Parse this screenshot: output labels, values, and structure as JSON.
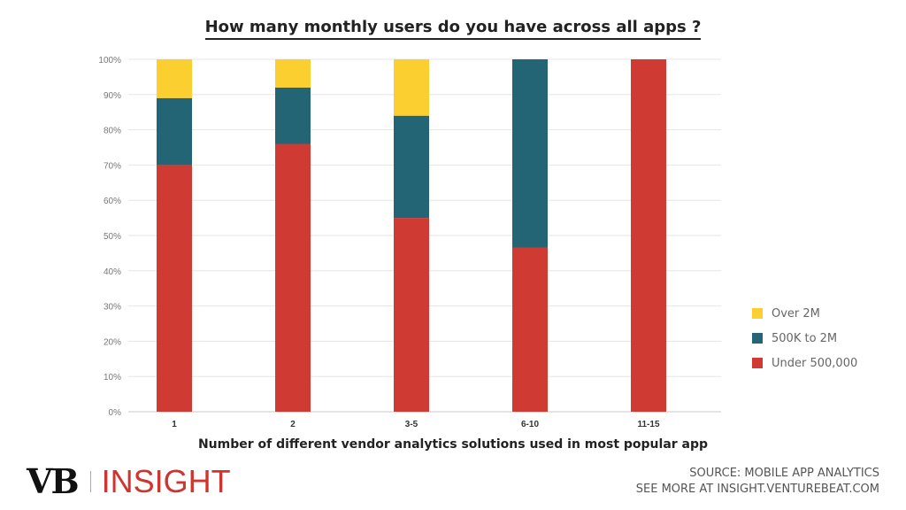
{
  "chart_data": {
    "type": "bar",
    "stacked": true,
    "title": "How many monthly users do you have across all apps ?",
    "xlabel": "Number of different vendor analytics solutions used in most popular app",
    "ylabel": "",
    "categories": [
      "1",
      "2",
      "3-5",
      "6-10",
      "11-15"
    ],
    "ylim": [
      0,
      100
    ],
    "yticks": [
      "0%",
      "10%",
      "20%",
      "30%",
      "40%",
      "50%",
      "60%",
      "70%",
      "80%",
      "90%",
      "100%"
    ],
    "series": [
      {
        "name": "Under 500,000",
        "color": "#cf3a33",
        "values": [
          70,
          76,
          55,
          46.5,
          100
        ]
      },
      {
        "name": "500K to 2M",
        "color": "#236574",
        "values": [
          19,
          16,
          29,
          53.5,
          0
        ]
      },
      {
        "name": "Over 2M",
        "color": "#fccf31",
        "values": [
          11,
          8,
          16,
          0,
          0
        ]
      }
    ],
    "legend_position": "right",
    "legend_order": [
      "Over 2M",
      "500K to 2M",
      "Under 500,000"
    ],
    "grid": true
  },
  "footer": {
    "logo_vb": "VB",
    "logo_insight": "INSIGHT",
    "source_line1": "SOURCE: MOBILE APP ANALYTICS",
    "source_line2": "SEE MORE AT INSIGHT.VENTUREBEAT.COM"
  },
  "colors": {
    "brand_red": "#cf3530"
  }
}
